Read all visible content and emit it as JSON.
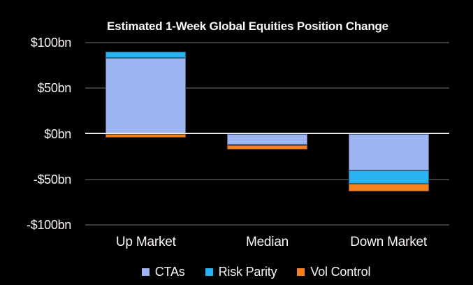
{
  "title": "Estimated 1-Week Global Equities Position Change",
  "chart_data": {
    "type": "bar",
    "stacked": true,
    "title": "Estimated 1-Week Global Equities Position Change",
    "categories": [
      "Up Market",
      "Median",
      "Down Market"
    ],
    "series": [
      {
        "name": "CTAs",
        "color": "#9db6f2",
        "values": [
          83,
          -12,
          -40
        ]
      },
      {
        "name": "Risk Parity",
        "color": "#29b3f1",
        "values": [
          7,
          -1,
          -15
        ]
      },
      {
        "name": "Vol Control",
        "color": "#f5821f",
        "values": [
          -4,
          -4,
          -8
        ]
      }
    ],
    "totals": {
      "up_market": 86,
      "median": -17,
      "down_market": -63
    },
    "ylabel_unit": "bn",
    "ylim": [
      -100,
      100
    ],
    "yticks": [
      {
        "value": 100,
        "label": "$100bn"
      },
      {
        "value": 50,
        "label": "$50bn"
      },
      {
        "value": 0,
        "label": "$0bn"
      },
      {
        "value": -50,
        "label": "-$50bn"
      },
      {
        "value": -100,
        "label": "-$100bn"
      }
    ],
    "grid": "horizontal",
    "legend_position": "bottom",
    "colors": {
      "background": "#000000",
      "text": "#fbf6f4",
      "gridline": "#3b3b3b",
      "zero_line": "#ececec"
    }
  }
}
